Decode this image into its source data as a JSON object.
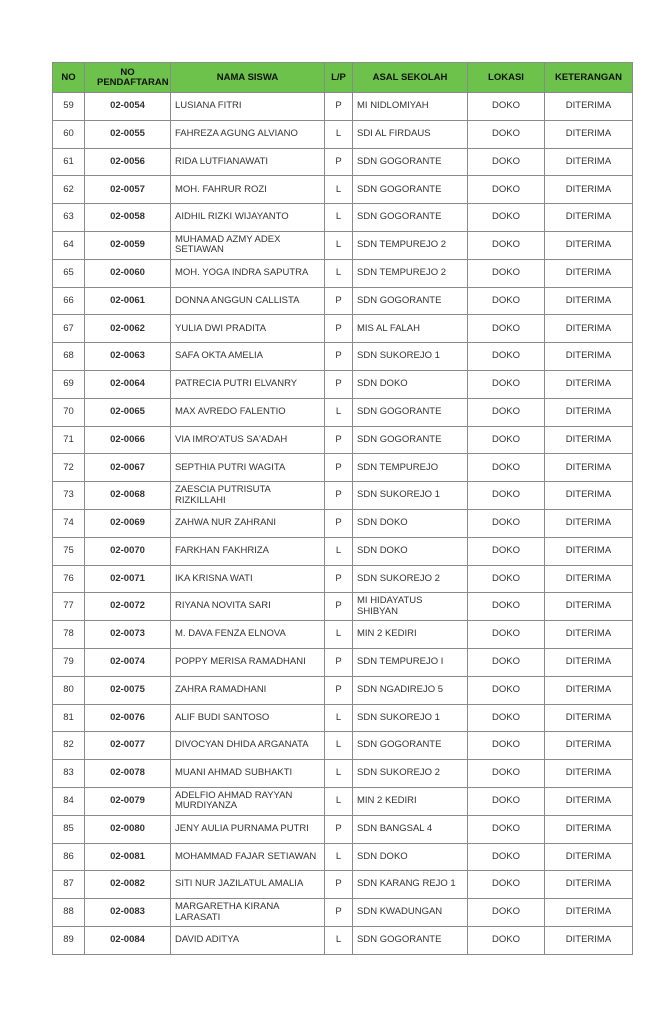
{
  "header_color": "#6cc24a",
  "columns": [
    "NO",
    "NO PENDAFTARAN",
    "NAMA SISWA",
    "L/P",
    "ASAL SEKOLAH",
    "LOKASI",
    "KETERANGAN"
  ],
  "rows": [
    [
      "59",
      "02-0054",
      "LUSIANA FITRI",
      "P",
      "MI NIDLOMIYAH",
      "DOKO",
      "DITERIMA"
    ],
    [
      "60",
      "02-0055",
      "FAHREZA AGUNG ALVIANO",
      "L",
      "SDI AL FIRDAUS",
      "DOKO",
      "DITERIMA"
    ],
    [
      "61",
      "02-0056",
      "RIDA LUTFIANAWATI",
      "P",
      "SDN GOGORANTE",
      "DOKO",
      "DITERIMA"
    ],
    [
      "62",
      "02-0057",
      "MOH. FAHRUR ROZI",
      "L",
      "SDN GOGORANTE",
      "DOKO",
      "DITERIMA"
    ],
    [
      "63",
      "02-0058",
      "AIDHIL RIZKI WIJAYANTO",
      "L",
      "SDN GOGORANTE",
      "DOKO",
      "DITERIMA"
    ],
    [
      "64",
      "02-0059",
      "MUHAMAD AZMY ADEX SETIAWAN",
      "L",
      "SDN TEMPUREJO 2",
      "DOKO",
      "DITERIMA"
    ],
    [
      "65",
      "02-0060",
      "MOH. YOGA INDRA SAPUTRA",
      "L",
      "SDN TEMPUREJO 2",
      "DOKO",
      "DITERIMA"
    ],
    [
      "66",
      "02-0061",
      "DONNA ANGGUN CALLISTA",
      "P",
      "SDN GOGORANTE",
      "DOKO",
      "DITERIMA"
    ],
    [
      "67",
      "02-0062",
      "YULIA DWI PRADITA",
      "P",
      "MIS AL FALAH",
      "DOKO",
      "DITERIMA"
    ],
    [
      "68",
      "02-0063",
      "SAFA OKTA AMELIA",
      "P",
      "SDN SUKOREJO 1",
      "DOKO",
      "DITERIMA"
    ],
    [
      "69",
      "02-0064",
      "PATRECIA PUTRI ELVANRY",
      "P",
      "SDN DOKO",
      "DOKO",
      "DITERIMA"
    ],
    [
      "70",
      "02-0065",
      "MAX AVREDO FALENTIO",
      "L",
      "SDN GOGORANTE",
      "DOKO",
      "DITERIMA"
    ],
    [
      "71",
      "02-0066",
      "VIA IMRO'ATUS SA'ADAH",
      "P",
      "SDN GOGORANTE",
      "DOKO",
      "DITERIMA"
    ],
    [
      "72",
      "02-0067",
      "SEPTHIA PUTRI WAGITA",
      "P",
      "SDN TEMPUREJO",
      "DOKO",
      "DITERIMA"
    ],
    [
      "73",
      "02-0068",
      "ZAESCIA PUTRISUTA RIZKILLAHI",
      "P",
      "SDN SUKOREJO 1",
      "DOKO",
      "DITERIMA"
    ],
    [
      "74",
      "02-0069",
      "ZAHWA NUR ZAHRANI",
      "P",
      "SDN DOKO",
      "DOKO",
      "DITERIMA"
    ],
    [
      "75",
      "02-0070",
      "FARKHAN FAKHRIZA",
      "L",
      "SDN DOKO",
      "DOKO",
      "DITERIMA"
    ],
    [
      "76",
      "02-0071",
      "IKA KRISNA WATI",
      "P",
      "SDN SUKOREJO 2",
      "DOKO",
      "DITERIMA"
    ],
    [
      "77",
      "02-0072",
      "RIYANA NOVITA SARI",
      "P",
      "MI HIDAYATUS SHIBYAN",
      "DOKO",
      "DITERIMA"
    ],
    [
      "78",
      "02-0073",
      "M. DAVA FENZA ELNOVA",
      "L",
      "MIN 2 KEDIRI",
      "DOKO",
      "DITERIMA"
    ],
    [
      "79",
      "02-0074",
      "POPPY MERISA RAMADHANI",
      "P",
      "SDN TEMPUREJO I",
      "DOKO",
      "DITERIMA"
    ],
    [
      "80",
      "02-0075",
      "ZAHRA RAMADHANI",
      "P",
      "SDN NGADIREJO 5",
      "DOKO",
      "DITERIMA"
    ],
    [
      "81",
      "02-0076",
      "ALIF BUDI SANTOSO",
      "L",
      "SDN SUKOREJO 1",
      "DOKO",
      "DITERIMA"
    ],
    [
      "82",
      "02-0077",
      "DIVOCYAN DHIDA ARGANATA",
      "L",
      "SDN GOGORANTE",
      "DOKO",
      "DITERIMA"
    ],
    [
      "83",
      "02-0078",
      "MUANI AHMAD SUBHAKTI",
      "L",
      "SDN SUKOREJO 2",
      "DOKO",
      "DITERIMA"
    ],
    [
      "84",
      "02-0079",
      "ADELFIO AHMAD RAYYAN MURDIYANZA",
      "L",
      "MIN 2 KEDIRI",
      "DOKO",
      "DITERIMA"
    ],
    [
      "85",
      "02-0080",
      "JENY AULIA PURNAMA PUTRI",
      "P",
      "SDN BANGSAL 4",
      "DOKO",
      "DITERIMA"
    ],
    [
      "86",
      "02-0081",
      "MOHAMMAD FAJAR SETIAWAN",
      "L",
      "SDN DOKO",
      "DOKO",
      "DITERIMA"
    ],
    [
      "87",
      "02-0082",
      "SITI NUR JAZILATUL AMALIA",
      "P",
      "SDN KARANG REJO 1",
      "DOKO",
      "DITERIMA"
    ],
    [
      "88",
      "02-0083",
      "MARGARETHA KIRANA LARASATI",
      "P",
      "SDN KWADUNGAN",
      "DOKO",
      "DITERIMA"
    ],
    [
      "89",
      "02-0084",
      "DAVID ADITYA",
      "L",
      "SDN GOGORANTE",
      "DOKO",
      "DITERIMA"
    ]
  ]
}
